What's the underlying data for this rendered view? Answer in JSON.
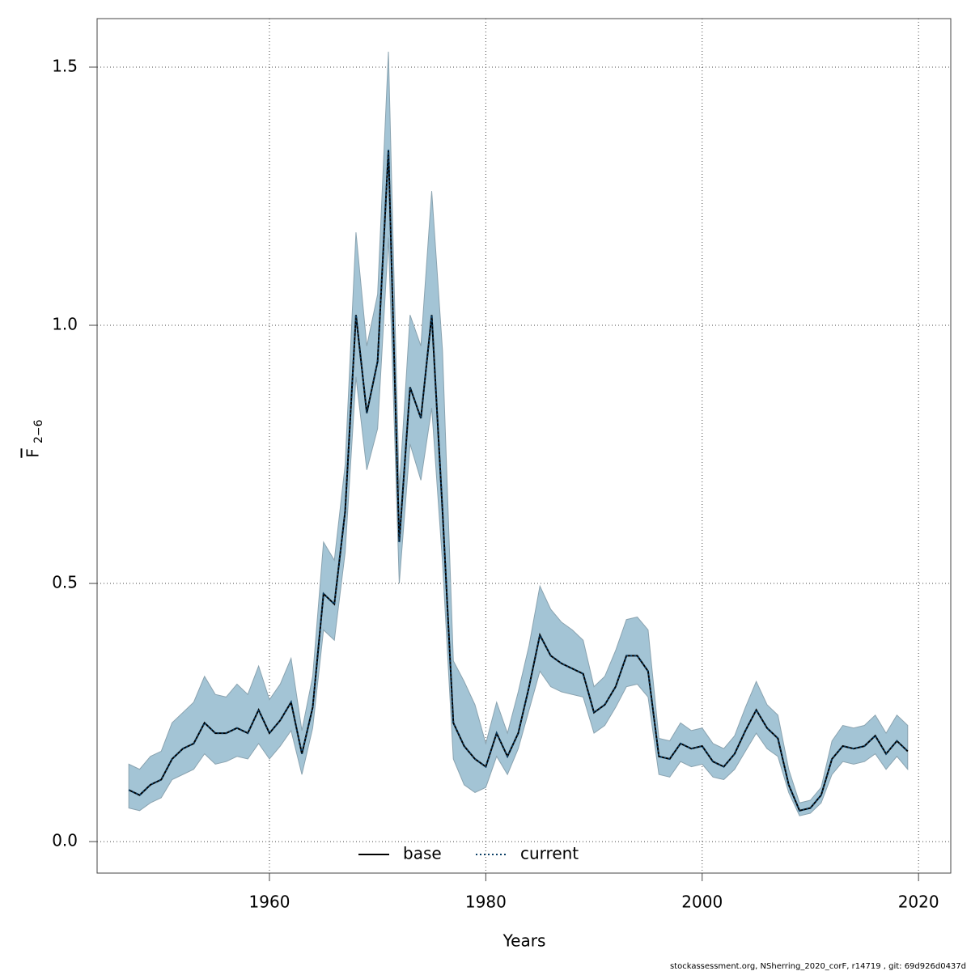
{
  "chart_data": {
    "type": "line",
    "xlabel": "Years",
    "ylabel": {
      "symbol": "F",
      "subscript": "2−6"
    },
    "footnote": "stockassessment.org, NSherring_2020_corF, r14719 , git: 69d926d0437d",
    "x": [
      1947,
      1948,
      1949,
      1950,
      1951,
      1952,
      1953,
      1954,
      1955,
      1956,
      1957,
      1958,
      1959,
      1960,
      1961,
      1962,
      1963,
      1964,
      1965,
      1966,
      1967,
      1968,
      1969,
      1970,
      1971,
      1972,
      1973,
      1974,
      1975,
      1976,
      1977,
      1978,
      1979,
      1980,
      1981,
      1982,
      1983,
      1984,
      1985,
      1986,
      1987,
      1988,
      1989,
      1990,
      1991,
      1992,
      1993,
      1994,
      1995,
      1996,
      1997,
      1998,
      1999,
      2000,
      2001,
      2002,
      2003,
      2004,
      2005,
      2006,
      2007,
      2008,
      2009,
      2010,
      2011,
      2012,
      2013,
      2014,
      2015,
      2016,
      2017,
      2018,
      2019
    ],
    "band": {
      "color": "#a3c4d5",
      "lower": [
        0.065,
        0.06,
        0.075,
        0.085,
        0.12,
        0.13,
        0.14,
        0.17,
        0.15,
        0.155,
        0.165,
        0.16,
        0.19,
        0.16,
        0.185,
        0.215,
        0.13,
        0.22,
        0.41,
        0.39,
        0.56,
        0.9,
        0.72,
        0.8,
        1.17,
        0.5,
        0.77,
        0.7,
        0.84,
        0.54,
        0.16,
        0.11,
        0.095,
        0.105,
        0.165,
        0.13,
        0.18,
        0.255,
        0.33,
        0.3,
        0.29,
        0.285,
        0.28,
        0.21,
        0.225,
        0.26,
        0.3,
        0.305,
        0.28,
        0.13,
        0.125,
        0.155,
        0.145,
        0.15,
        0.125,
        0.12,
        0.14,
        0.175,
        0.21,
        0.18,
        0.165,
        0.095,
        0.05,
        0.055,
        0.075,
        0.13,
        0.155,
        0.15,
        0.155,
        0.17,
        0.14,
        0.165,
        0.14
      ],
      "upper": [
        0.15,
        0.14,
        0.165,
        0.175,
        0.23,
        0.25,
        0.27,
        0.32,
        0.285,
        0.28,
        0.305,
        0.285,
        0.34,
        0.275,
        0.305,
        0.355,
        0.215,
        0.32,
        0.58,
        0.545,
        0.73,
        1.18,
        0.96,
        1.06,
        1.53,
        0.68,
        1.02,
        0.96,
        1.26,
        0.95,
        0.35,
        0.31,
        0.265,
        0.19,
        0.27,
        0.21,
        0.29,
        0.38,
        0.495,
        0.45,
        0.425,
        0.41,
        0.39,
        0.3,
        0.32,
        0.37,
        0.43,
        0.435,
        0.41,
        0.2,
        0.195,
        0.23,
        0.215,
        0.22,
        0.19,
        0.18,
        0.205,
        0.26,
        0.31,
        0.265,
        0.245,
        0.14,
        0.075,
        0.08,
        0.105,
        0.195,
        0.225,
        0.22,
        0.225,
        0.245,
        0.21,
        0.245,
        0.225
      ]
    },
    "series": [
      {
        "name": "base",
        "color": "#000000",
        "dash": false,
        "values": [
          0.1,
          0.09,
          0.11,
          0.12,
          0.16,
          0.18,
          0.19,
          0.23,
          0.21,
          0.21,
          0.22,
          0.21,
          0.255,
          0.21,
          0.235,
          0.27,
          0.17,
          0.26,
          0.48,
          0.46,
          0.64,
          1.02,
          0.83,
          0.93,
          1.34,
          0.58,
          0.88,
          0.82,
          1.02,
          0.64,
          0.23,
          0.185,
          0.16,
          0.145,
          0.21,
          0.165,
          0.21,
          0.3,
          0.4,
          0.36,
          0.345,
          0.335,
          0.325,
          0.25,
          0.265,
          0.3,
          0.36,
          0.36,
          0.33,
          0.165,
          0.16,
          0.19,
          0.18,
          0.185,
          0.155,
          0.145,
          0.17,
          0.215,
          0.255,
          0.22,
          0.2,
          0.11,
          0.06,
          0.065,
          0.09,
          0.16,
          0.185,
          0.18,
          0.185,
          0.205,
          0.17,
          0.195,
          0.175
        ]
      },
      {
        "name": "current",
        "color": "#0b3f66",
        "dash": true,
        "values": [
          0.1,
          0.09,
          0.11,
          0.12,
          0.16,
          0.18,
          0.19,
          0.23,
          0.21,
          0.21,
          0.22,
          0.21,
          0.255,
          0.21,
          0.235,
          0.27,
          0.17,
          0.26,
          0.48,
          0.46,
          0.64,
          1.02,
          0.83,
          0.93,
          1.34,
          0.58,
          0.88,
          0.82,
          1.02,
          0.64,
          0.23,
          0.185,
          0.16,
          0.145,
          0.21,
          0.165,
          0.21,
          0.3,
          0.4,
          0.36,
          0.345,
          0.335,
          0.325,
          0.25,
          0.265,
          0.3,
          0.36,
          0.36,
          0.33,
          0.165,
          0.16,
          0.19,
          0.18,
          0.185,
          0.155,
          0.145,
          0.17,
          0.215,
          0.255,
          0.22,
          0.2,
          0.11,
          0.06,
          0.065,
          0.09,
          0.16,
          0.185,
          0.18,
          0.185,
          0.205,
          0.17,
          0.195,
          0.175
        ]
      }
    ],
    "xlim": [
      1944.07,
      2022.98
    ],
    "ylim": [
      -0.061,
      1.594
    ],
    "xticks": [
      1960,
      1980,
      2000,
      2020
    ],
    "yticks": [
      {
        "value": 0,
        "label": "0.0"
      },
      0.5,
      {
        "value": 1,
        "label": "1.0"
      },
      1.5
    ],
    "grid": true,
    "legend": "bottom"
  }
}
